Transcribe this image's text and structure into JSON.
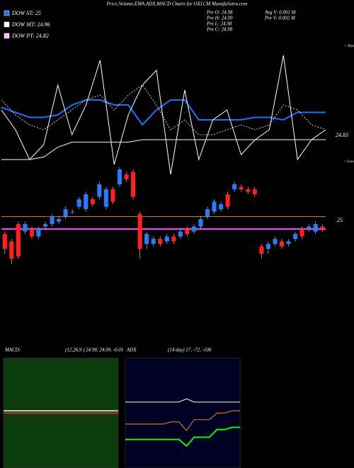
{
  "chart_data": [
    {
      "type": "candlestick",
      "title": "Price,Volume,EMA,ADX,MACD Charts for OXLCM MunafaSutra.com",
      "legend": [
        {
          "label": "DOW ST: 25",
          "color": "#1e6fff"
        },
        {
          "label": "DOW MT: 24.96",
          "color": "#ffffff"
        },
        {
          "label": "DOW PT: 24.82",
          "color": "#ffc0ff"
        }
      ],
      "info": [
        "Pre O: 24.98",
        "Pre H: 24.99",
        "Pre L: 24.98",
        "Pre C: 24.98",
        "Avg V: 0.001 M",
        "Pre V: 0.002 M"
      ],
      "annotations": [
        "< Tops",
        "< Lows",
        "24.83",
        "25"
      ],
      "ylim": [
        0,
        100
      ],
      "up_color": "#2b7bff",
      "down_color": "#ff2020",
      "open": [
        20,
        17,
        24,
        21,
        22,
        19,
        23,
        24,
        25,
        27,
        29,
        31,
        30,
        34,
        35,
        31,
        38,
        40,
        44,
        45,
        28,
        16,
        16,
        18,
        17,
        19,
        19,
        22,
        21,
        23,
        27,
        29,
        30,
        36,
        38,
        39,
        38,
        38,
        15,
        14,
        16,
        17,
        16,
        18,
        22,
        22,
        21,
        23
      ],
      "high": [
        21,
        18,
        25,
        25,
        23,
        23,
        25,
        28,
        27,
        31,
        30,
        35,
        37,
        35,
        41,
        39,
        39,
        47,
        45,
        46,
        29,
        21,
        19,
        19,
        20,
        20,
        22,
        23,
        24,
        27,
        31,
        34,
        33,
        37,
        41,
        40,
        39,
        39,
        16,
        17,
        19,
        18,
        18,
        21,
        23,
        24,
        25,
        24
      ],
      "low": [
        12,
        8,
        10,
        20,
        18,
        18,
        22,
        23,
        24,
        26,
        28,
        30,
        29,
        31,
        34,
        30,
        32,
        39,
        41,
        34,
        10,
        14,
        15,
        15,
        16,
        16,
        18,
        19,
        20,
        22,
        26,
        28,
        29,
        30,
        37,
        37,
        36,
        35,
        10,
        12,
        15,
        14,
        15,
        17,
        18,
        21,
        20,
        21
      ],
      "close": [
        14,
        10,
        11,
        24,
        19,
        22,
        24,
        27,
        26,
        30,
        29,
        34,
        36,
        32,
        40,
        38,
        33,
        46,
        42,
        35,
        14,
        20,
        18,
        16,
        19,
        17,
        21,
        20,
        23,
        26,
        30,
        33,
        32,
        31,
        40,
        38,
        37,
        36,
        12,
        16,
        18,
        15,
        17,
        20,
        19,
        23,
        24,
        22
      ],
      "series": [
        {
          "color": "#1e6fff",
          "width": 2,
          "dash": false,
          "values": [
            71,
            69,
            67,
            67,
            68,
            72,
            74,
            74,
            72,
            72,
            64,
            70,
            74,
            74,
            66,
            66,
            66,
            66,
            67,
            67,
            66,
            69,
            69,
            69
          ]
        },
        {
          "color": "#ffffff",
          "width": 1,
          "dash": false,
          "values": [
            70,
            62,
            50,
            56,
            80,
            60,
            72,
            90,
            48,
            68,
            80,
            86,
            44,
            78,
            50,
            66,
            70,
            52,
            58,
            62,
            92,
            50,
            58,
            62
          ]
        },
        {
          "color": "#ffffff",
          "width": 0.8,
          "dash": true,
          "values": [
            74,
            68,
            64,
            62,
            66,
            70,
            74,
            76,
            70,
            76,
            80,
            72,
            62,
            66,
            60,
            60,
            62,
            64,
            62,
            64,
            72,
            70,
            64,
            62
          ]
        },
        {
          "color": "#cccccc",
          "width": 1.2,
          "dash": false,
          "values": [
            50,
            50,
            50,
            51,
            55,
            57,
            57,
            57,
            57,
            57,
            58,
            58,
            58,
            58,
            58,
            58,
            58,
            58,
            58,
            58,
            58,
            58,
            58,
            58
          ]
        },
        {
          "color": "#c87533",
          "width": 1,
          "dash": false,
          "values": [
            27,
            27
          ]
        },
        {
          "color": "#d050d0",
          "width": 2.5,
          "dash": false,
          "values": [
            22,
            22
          ]
        }
      ]
    },
    {
      "type": "line",
      "title": "MACD:",
      "subtitle": "(12,26,9 ) 24.98, 24.99, -0.01",
      "ylim": [
        0,
        100
      ],
      "background": "#0b3a0b",
      "series": [
        {
          "color": "#ff3030",
          "width": 1.5,
          "dash": false,
          "values": [
            50,
            50,
            50,
            50,
            50,
            50,
            50,
            50
          ]
        },
        {
          "color": "#ffffff",
          "width": 1.5,
          "dash": false,
          "values": [
            52,
            52,
            52,
            52,
            52,
            52,
            52,
            52
          ]
        }
      ]
    },
    {
      "type": "line",
      "title": "ADX",
      "subtitle": "(14 day) 17, -72, -100",
      "ylim": [
        0,
        100
      ],
      "background": "#000022",
      "series": [
        {
          "color": "#ffffff",
          "width": 1,
          "dash": false,
          "values": [
            60,
            60,
            60,
            60,
            60,
            60,
            60,
            60,
            63,
            60,
            60,
            60,
            60,
            60,
            60,
            60
          ]
        },
        {
          "color": "#c87533",
          "width": 1.2,
          "dash": false,
          "values": [
            40,
            40,
            40,
            40,
            40,
            40,
            42,
            42,
            34,
            44,
            44,
            44,
            50,
            50,
            52,
            52
          ]
        },
        {
          "color": "#00ff00",
          "width": 2,
          "dash": false,
          "values": [
            26,
            26,
            26,
            26,
            26,
            26,
            26,
            26,
            20,
            28,
            28,
            28,
            35,
            35,
            37,
            37
          ]
        }
      ]
    }
  ]
}
